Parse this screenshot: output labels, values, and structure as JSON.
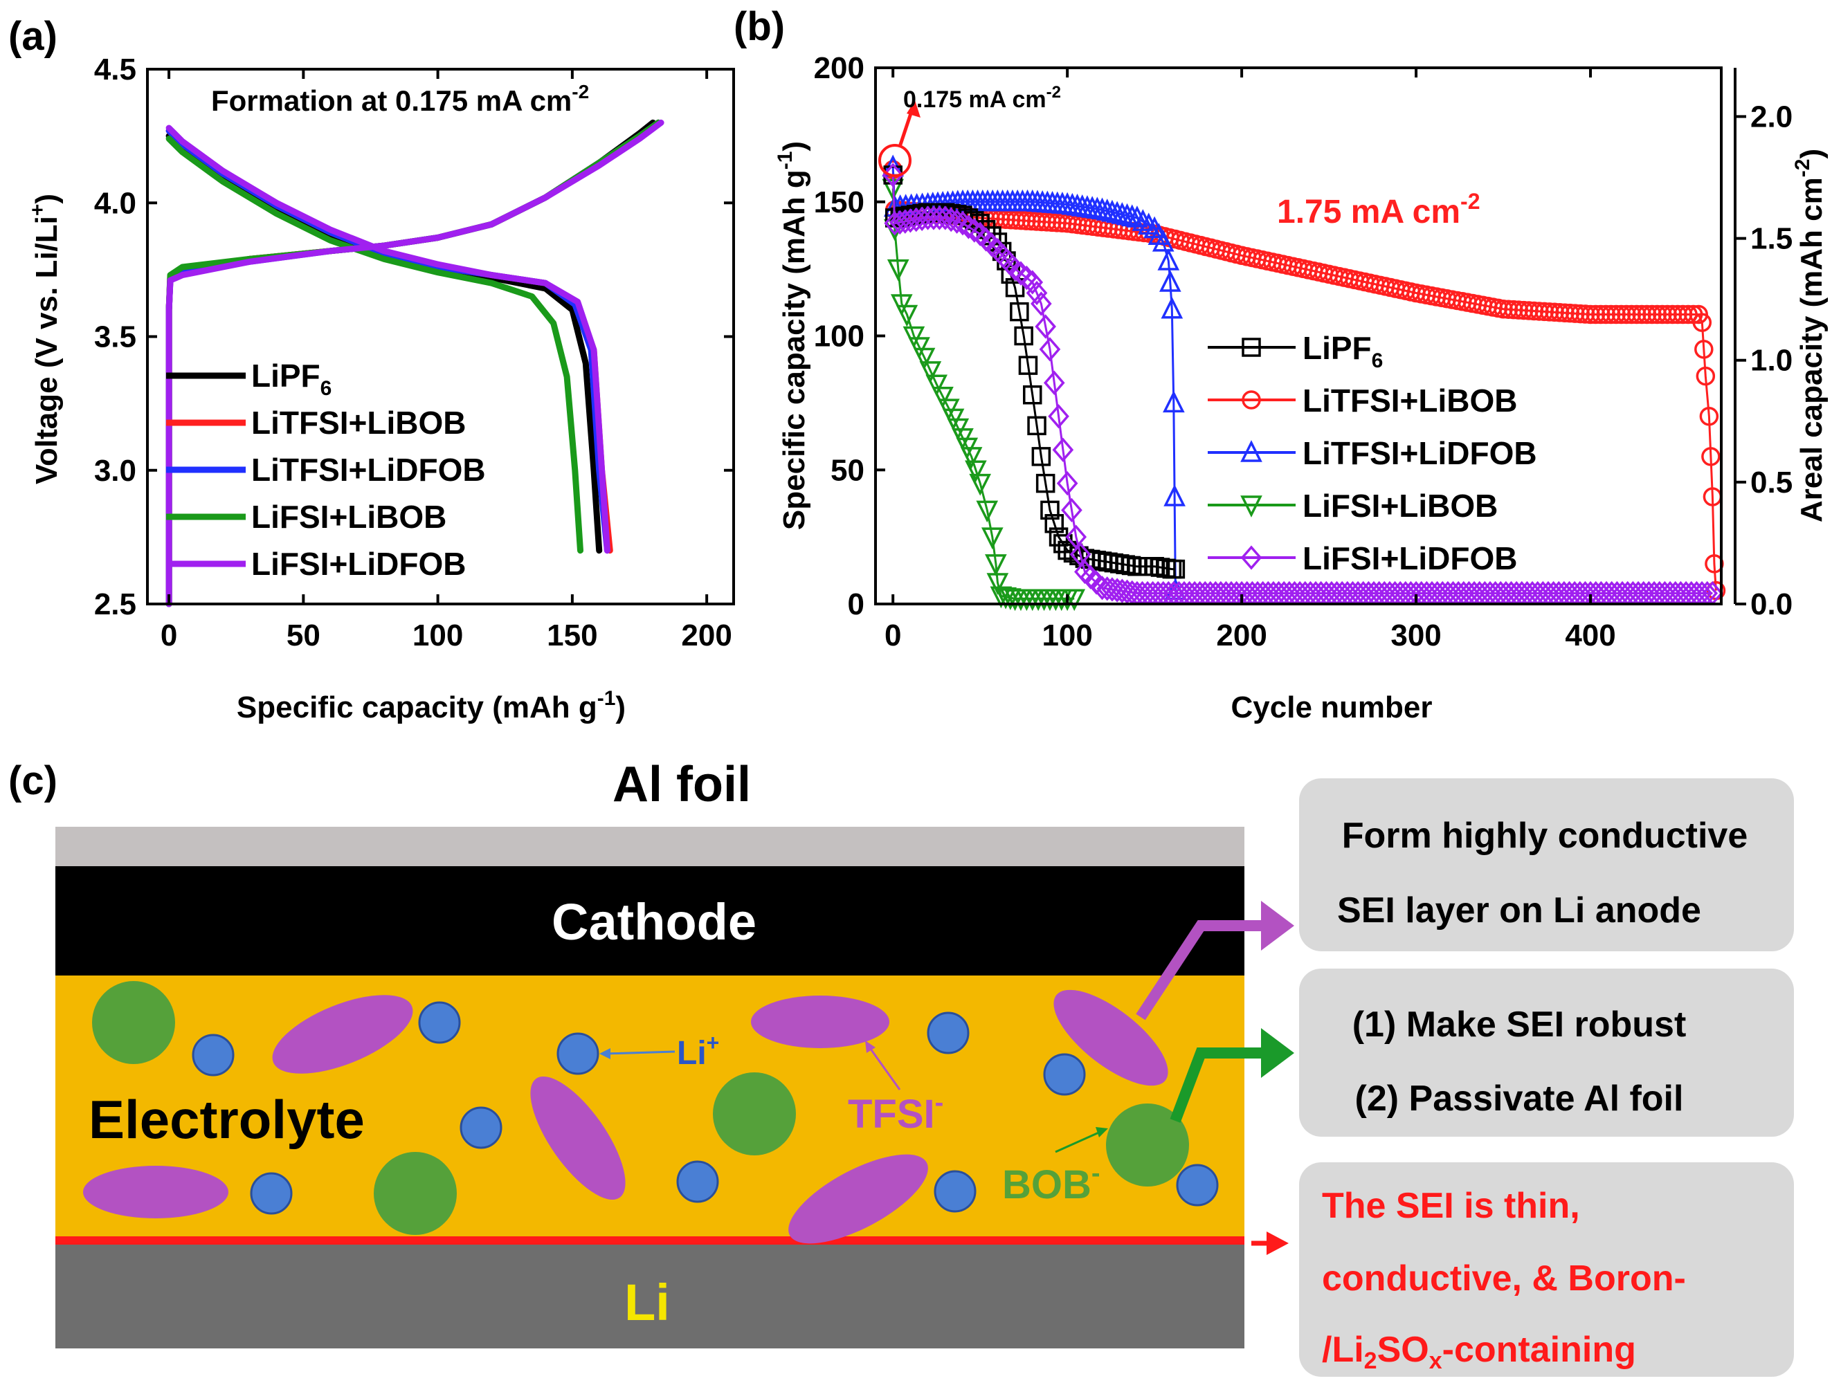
{
  "chart_data": [
    {
      "panel": "(a)",
      "type": "line",
      "title": "Formation at 0.175 mA cm",
      "title_sup": "-2",
      "xlabel": "Specific capacity (mAh g",
      "xlabel_sup": "-1",
      "xlabel_end": ")",
      "ylabel": "Voltage (V vs. Li/Li",
      "ylabel_sup": "+",
      "ylabel_end": ")",
      "xlim": [
        -8,
        210
      ],
      "ylim": [
        2.5,
        4.5
      ],
      "xticks": [
        0,
        50,
        100,
        150,
        200
      ],
      "yticks": [
        2.5,
        3.0,
        3.5,
        4.0,
        4.5
      ],
      "ytick_labels": [
        "2.5",
        "3.0",
        "3.5",
        "4.0",
        "4.5"
      ],
      "legend_position": "bottom-left",
      "series": [
        {
          "name": "LiPF",
          "sub": "6",
          "color": "#000000",
          "charge": [
            [
              0,
              2.5
            ],
            [
              0,
              3.6
            ],
            [
              0.5,
              3.72
            ],
            [
              5,
              3.75
            ],
            [
              30,
              3.79
            ],
            [
              60,
              3.82
            ],
            [
              80,
              3.84
            ],
            [
              100,
              3.87
            ],
            [
              120,
              3.92
            ],
            [
              140,
              4.02
            ],
            [
              160,
              4.15
            ],
            [
              175,
              4.26
            ],
            [
              180,
              4.3
            ]
          ],
          "discharge": [
            [
              0,
              4.25
            ],
            [
              5,
              4.2
            ],
            [
              20,
              4.1
            ],
            [
              40,
              3.98
            ],
            [
              60,
              3.88
            ],
            [
              80,
              3.8
            ],
            [
              100,
              3.75
            ],
            [
              120,
              3.72
            ],
            [
              140,
              3.68
            ],
            [
              150,
              3.6
            ],
            [
              155,
              3.4
            ],
            [
              158,
              3.0
            ],
            [
              160,
              2.7
            ]
          ]
        },
        {
          "name": "LiTFSI+LiBOB",
          "color": "#ff2020",
          "charge": [
            [
              0,
              2.5
            ],
            [
              0,
              3.6
            ],
            [
              0.5,
              3.72
            ],
            [
              5,
              3.75
            ],
            [
              30,
              3.79
            ],
            [
              60,
              3.82
            ],
            [
              80,
              3.84
            ],
            [
              100,
              3.87
            ],
            [
              120,
              3.92
            ],
            [
              140,
              4.02
            ],
            [
              160,
              4.15
            ],
            [
              175,
              4.25
            ],
            [
              182,
              4.3
            ]
          ],
          "discharge": [
            [
              0,
              4.27
            ],
            [
              5,
              4.22
            ],
            [
              20,
              4.11
            ],
            [
              40,
              3.99
            ],
            [
              60,
              3.89
            ],
            [
              80,
              3.81
            ],
            [
              100,
              3.76
            ],
            [
              120,
              3.73
            ],
            [
              140,
              3.7
            ],
            [
              152,
              3.62
            ],
            [
              158,
              3.45
            ],
            [
              161,
              3.0
            ],
            [
              164,
              2.7
            ]
          ]
        },
        {
          "name": "LiTFSI+LiDFOB",
          "color": "#2030ff",
          "charge": [
            [
              0,
              2.5
            ],
            [
              0,
              3.6
            ],
            [
              0.5,
              3.71
            ],
            [
              5,
              3.74
            ],
            [
              30,
              3.78
            ],
            [
              60,
              3.82
            ],
            [
              80,
              3.84
            ],
            [
              100,
              3.87
            ],
            [
              120,
              3.92
            ],
            [
              140,
              4.02
            ],
            [
              160,
              4.15
            ],
            [
              175,
              4.25
            ],
            [
              182,
              4.3
            ]
          ],
          "discharge": [
            [
              0,
              4.27
            ],
            [
              5,
              4.22
            ],
            [
              20,
              4.11
            ],
            [
              40,
              3.99
            ],
            [
              60,
              3.89
            ],
            [
              80,
              3.81
            ],
            [
              100,
              3.76
            ],
            [
              120,
              3.73
            ],
            [
              140,
              3.7
            ],
            [
              151,
              3.62
            ],
            [
              157,
              3.45
            ],
            [
              160,
              3.0
            ],
            [
              163,
              2.7
            ]
          ]
        },
        {
          "name": "LiFSI+LiBOB",
          "color": "#1a9a1a",
          "charge": [
            [
              0,
              2.5
            ],
            [
              0,
              3.6
            ],
            [
              0.5,
              3.73
            ],
            [
              5,
              3.76
            ],
            [
              30,
              3.79
            ],
            [
              60,
              3.82
            ],
            [
              80,
              3.84
            ],
            [
              100,
              3.87
            ],
            [
              120,
              3.92
            ],
            [
              140,
              4.02
            ],
            [
              160,
              4.15
            ],
            [
              175,
              4.25
            ],
            [
              182,
              4.3
            ]
          ],
          "discharge": [
            [
              0,
              4.24
            ],
            [
              5,
              4.19
            ],
            [
              20,
              4.08
            ],
            [
              40,
              3.96
            ],
            [
              60,
              3.86
            ],
            [
              80,
              3.79
            ],
            [
              100,
              3.74
            ],
            [
              120,
              3.7
            ],
            [
              135,
              3.65
            ],
            [
              143,
              3.55
            ],
            [
              148,
              3.35
            ],
            [
              151,
              3.0
            ],
            [
              153,
              2.7
            ]
          ]
        },
        {
          "name": "LiFSI+LiDFOB",
          "color": "#a020ef",
          "charge": [
            [
              0,
              2.5
            ],
            [
              0,
              3.6
            ],
            [
              0.5,
              3.71
            ],
            [
              5,
              3.73
            ],
            [
              30,
              3.78
            ],
            [
              60,
              3.82
            ],
            [
              80,
              3.84
            ],
            [
              100,
              3.87
            ],
            [
              120,
              3.92
            ],
            [
              140,
              4.02
            ],
            [
              160,
              4.14
            ],
            [
              175,
              4.24
            ],
            [
              183,
              4.3
            ]
          ],
          "discharge": [
            [
              0,
              4.28
            ],
            [
              5,
              4.23
            ],
            [
              20,
              4.12
            ],
            [
              40,
              4.0
            ],
            [
              60,
              3.9
            ],
            [
              80,
              3.82
            ],
            [
              100,
              3.77
            ],
            [
              120,
              3.73
            ],
            [
              140,
              3.7
            ],
            [
              152,
              3.63
            ],
            [
              158,
              3.45
            ],
            [
              161,
              3.0
            ],
            [
              163,
              2.7
            ]
          ]
        }
      ]
    },
    {
      "panel": "(b)",
      "type": "scatter",
      "xlabel": "Cycle number",
      "ylabel": "Specific capacity (mAh g",
      "ylabel_sup": "-1",
      "ylabel_end": ")",
      "y2label": "Areal capacity (mAh cm",
      "y2label_sup": "-2",
      "y2label_end": ")",
      "xlim": [
        -10,
        475
      ],
      "ylim": [
        0,
        200
      ],
      "y2lim": [
        0,
        2.2
      ],
      "xticks": [
        0,
        100,
        200,
        300,
        400
      ],
      "yticks": [
        0,
        50,
        100,
        150,
        200
      ],
      "y2ticks": [
        0.0,
        0.5,
        1.0,
        1.5,
        2.0
      ],
      "y2tick_labels": [
        "0.0",
        "0.5",
        "1.0",
        "1.5",
        "2.0"
      ],
      "annotation_low_rate": "0.175 mA cm",
      "annotation_low_rate_sup": "-2",
      "annotation_high_rate": "1.75 mA cm",
      "annotation_high_rate_sup": "-2",
      "legend_position": "center-right",
      "series": [
        {
          "name": "LiPF",
          "sub": "6",
          "color": "#000000",
          "marker": "square",
          "points": [
            [
              0,
              160
            ],
            [
              1,
              144
            ],
            [
              10,
              145
            ],
            [
              20,
              146
            ],
            [
              30,
              146
            ],
            [
              40,
              145
            ],
            [
              50,
              142
            ],
            [
              60,
              135
            ],
            [
              65,
              128
            ],
            [
              70,
              118
            ],
            [
              75,
              100
            ],
            [
              80,
              78
            ],
            [
              85,
              55
            ],
            [
              90,
              35
            ],
            [
              95,
              25
            ],
            [
              100,
              20
            ],
            [
              110,
              17
            ],
            [
              120,
              16
            ],
            [
              130,
              15
            ],
            [
              140,
              14
            ],
            [
              150,
              14
            ],
            [
              160,
              13
            ],
            [
              162,
              13
            ]
          ]
        },
        {
          "name": "LiTFSI+LiBOB",
          "color": "#ff2020",
          "marker": "circle",
          "points": [
            [
              0,
              162
            ],
            [
              1,
              147
            ],
            [
              20,
              146
            ],
            [
              50,
              144
            ],
            [
              100,
              142
            ],
            [
              150,
              138
            ],
            [
              200,
              130
            ],
            [
              250,
              123
            ],
            [
              300,
              116
            ],
            [
              350,
              110
            ],
            [
              400,
              108
            ],
            [
              450,
              108
            ],
            [
              462,
              108
            ],
            [
              464,
              105
            ],
            [
              465,
              95
            ],
            [
              466,
              85
            ],
            [
              468,
              70
            ],
            [
              469,
              55
            ],
            [
              470,
              40
            ],
            [
              471,
              15
            ],
            [
              472,
              5
            ]
          ]
        },
        {
          "name": "LiTFSI+LiDFOB",
          "color": "#2030ff",
          "marker": "triangle",
          "points": [
            [
              0,
              163
            ],
            [
              1,
              148
            ],
            [
              20,
              149
            ],
            [
              40,
              150
            ],
            [
              60,
              150
            ],
            [
              80,
              150
            ],
            [
              100,
              149
            ],
            [
              120,
              147
            ],
            [
              140,
              144
            ],
            [
              150,
              140
            ],
            [
              155,
              135
            ],
            [
              158,
              128
            ],
            [
              159,
              120
            ],
            [
              160,
              110
            ],
            [
              161,
              75
            ],
            [
              161.5,
              40
            ],
            [
              162,
              5
            ]
          ]
        },
        {
          "name": "LiFSI+LiBOB",
          "color": "#1a9a1a",
          "marker": "triangle-down",
          "points": [
            [
              0,
              155
            ],
            [
              1,
              140
            ],
            [
              3,
              125
            ],
            [
              5,
              112
            ],
            [
              8,
              108
            ],
            [
              12,
              100
            ],
            [
              18,
              92
            ],
            [
              25,
              82
            ],
            [
              32,
              73
            ],
            [
              40,
              62
            ],
            [
              45,
              55
            ],
            [
              50,
              45
            ],
            [
              54,
              35
            ],
            [
              57,
              25
            ],
            [
              59,
              15
            ],
            [
              60,
              8
            ],
            [
              62,
              3
            ],
            [
              70,
              2
            ],
            [
              80,
              2
            ],
            [
              90,
              2
            ],
            [
              100,
              2
            ],
            [
              104,
              2
            ]
          ]
        },
        {
          "name": "LiFSI+LiDFOB",
          "color": "#a020ef",
          "marker": "diamond",
          "points": [
            [
              0,
              160
            ],
            [
              1,
              142
            ],
            [
              10,
              143
            ],
            [
              20,
              144
            ],
            [
              30,
              144
            ],
            [
              40,
              142
            ],
            [
              50,
              138
            ],
            [
              60,
              132
            ],
            [
              70,
              125
            ],
            [
              80,
              120
            ],
            [
              85,
              112
            ],
            [
              90,
              95
            ],
            [
              95,
              70
            ],
            [
              100,
              45
            ],
            [
              105,
              25
            ],
            [
              110,
              12
            ],
            [
              120,
              6
            ],
            [
              140,
              4
            ],
            [
              200,
              4
            ],
            [
              300,
              4
            ],
            [
              400,
              4
            ],
            [
              470,
              4
            ]
          ]
        }
      ]
    }
  ],
  "schematic": {
    "panel": "(c)",
    "al_foil_label": "Al foil",
    "cathode_label": "Cathode",
    "electrolyte_label": "Electrolyte",
    "li_ion_label": "Li",
    "li_ion_sup": "+",
    "tfsi_label": "TFSI",
    "tfsi_sup": "-",
    "bob_label": "BOB",
    "bob_sup": "-",
    "li_label": "Li",
    "box1_line1": "Form highly conductive",
    "box1_line2": "SEI layer on Li anode",
    "box2_line1": "(1) Make SEI robust",
    "box2_line2": "(2) Passivate Al foil",
    "box3_line1": "The SEI is thin,",
    "box3_line2": "conductive, & Boron-",
    "box3_line3_a": "/Li",
    "box3_line3_sub1": "2",
    "box3_line3_b": "SO",
    "box3_line3_sub2": "x",
    "box3_line3_c": "-containing",
    "colors": {
      "al_foil": "#c4c0c0",
      "cathode": "#000000",
      "electrolyte": "#f3b800",
      "li_metal": "#6e6e6e",
      "sei_line": "#ff1a1a",
      "li_ion": "#4a7fd4",
      "tfsi": "#b352c2",
      "bob": "#55a13a",
      "box": "#d9d9d9",
      "purple_arrow": "#b352c2",
      "green_arrow": "#1a9a2a",
      "red_arrow": "#ff1a1a",
      "li_text": "#f5e600"
    }
  }
}
